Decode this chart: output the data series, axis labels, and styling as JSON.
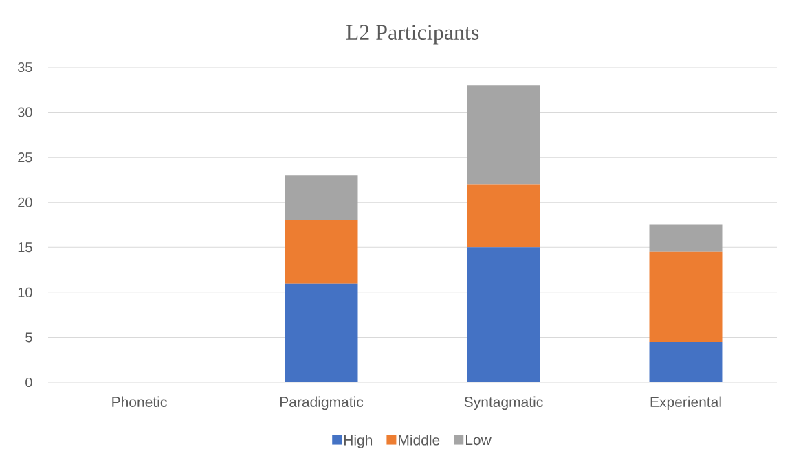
{
  "chart_data": {
    "type": "bar",
    "title": "L2 Participants",
    "categories": [
      "Phonetic",
      "Paradigmatic",
      "Syntagmatic",
      "Experiental"
    ],
    "series": [
      {
        "name": "High",
        "color": "#4472c4",
        "values": [
          0,
          11,
          15,
          4.5
        ]
      },
      {
        "name": "Middle",
        "color": "#ed7d31",
        "values": [
          0,
          7,
          7,
          10
        ]
      },
      {
        "name": "Low",
        "color": "#a5a5a5",
        "values": [
          0,
          5,
          11,
          3
        ]
      }
    ],
    "stacked": true,
    "ylim": [
      0,
      35
    ],
    "yticks": [
      0,
      5,
      10,
      15,
      20,
      25,
      30,
      35
    ],
    "grid": "y",
    "legend": "bottom"
  }
}
